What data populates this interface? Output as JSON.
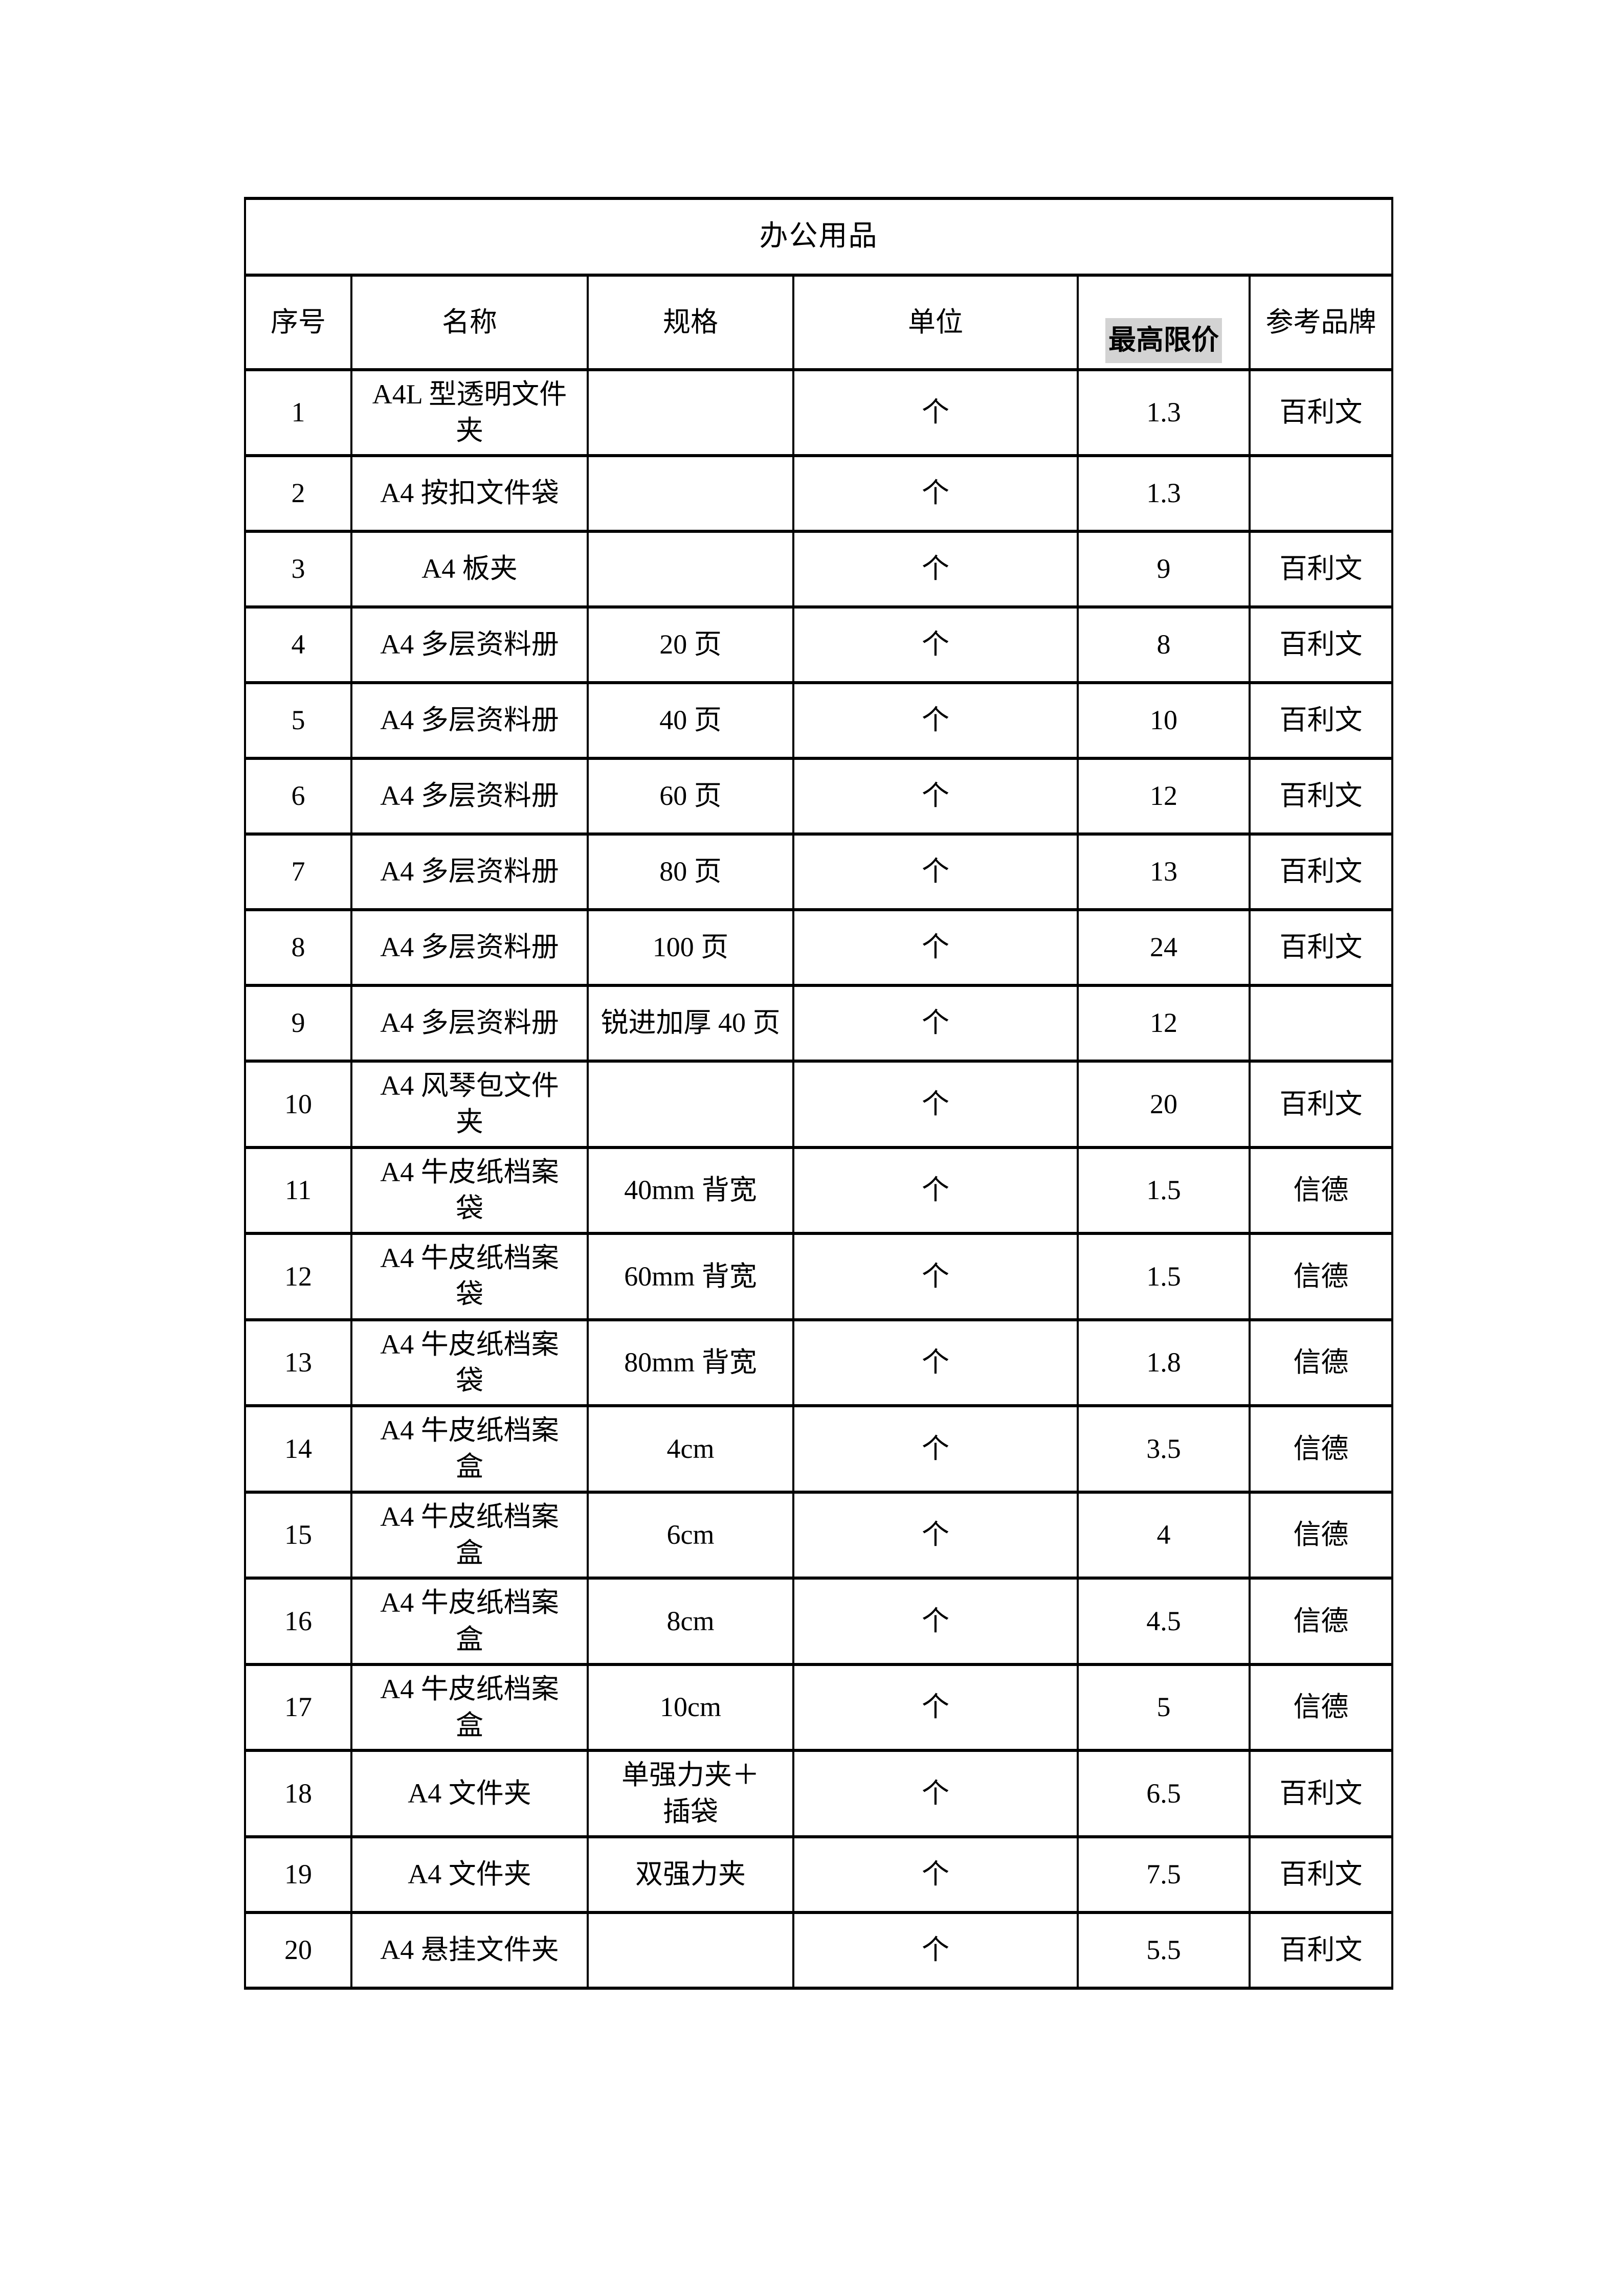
{
  "table": {
    "title": "办公用品",
    "columns": [
      "序号",
      "名称",
      "规格",
      "单位",
      "最高限价",
      "参考品牌"
    ],
    "highlight_color": "#d3d3d3",
    "rows": [
      {
        "no": "1",
        "name": "A4L 型透明文件\n夹",
        "spec": "",
        "unit": "个",
        "price": "1.3",
        "brand": "百利文"
      },
      {
        "no": "2",
        "name": "A4 按扣文件袋",
        "spec": "",
        "unit": "个",
        "price": "1.3",
        "brand": ""
      },
      {
        "no": "3",
        "name": "A4 板夹",
        "spec": "",
        "unit": "个",
        "price": "9",
        "brand": "百利文"
      },
      {
        "no": "4",
        "name": "A4 多层资料册",
        "spec": "20 页",
        "unit": "个",
        "price": "8",
        "brand": "百利文"
      },
      {
        "no": "5",
        "name": "A4 多层资料册",
        "spec": "40 页",
        "unit": "个",
        "price": "10",
        "brand": "百利文"
      },
      {
        "no": "6",
        "name": "A4 多层资料册",
        "spec": "60 页",
        "unit": "个",
        "price": "12",
        "brand": "百利文"
      },
      {
        "no": "7",
        "name": "A4 多层资料册",
        "spec": "80 页",
        "unit": "个",
        "price": "13",
        "brand": "百利文"
      },
      {
        "no": "8",
        "name": "A4 多层资料册",
        "spec": "100 页",
        "unit": "个",
        "price": "24",
        "brand": "百利文"
      },
      {
        "no": "9",
        "name": "A4 多层资料册",
        "spec": "锐进加厚 40 页",
        "unit": "个",
        "price": "12",
        "brand": ""
      },
      {
        "no": "10",
        "name": "A4 风琴包文件\n夹",
        "spec": "",
        "unit": "个",
        "price": "20",
        "brand": "百利文"
      },
      {
        "no": "11",
        "name": "A4 牛皮纸档案\n袋",
        "spec": "40mm 背宽",
        "unit": "个",
        "price": "1.5",
        "brand": "信德"
      },
      {
        "no": "12",
        "name": "A4 牛皮纸档案\n袋",
        "spec": "60mm 背宽",
        "unit": "个",
        "price": "1.5",
        "brand": "信德"
      },
      {
        "no": "13",
        "name": "A4 牛皮纸档案\n袋",
        "spec": "80mm 背宽",
        "unit": "个",
        "price": "1.8",
        "brand": "信德"
      },
      {
        "no": "14",
        "name": "A4 牛皮纸档案\n盒",
        "spec": "4cm",
        "unit": "个",
        "price": "3.5",
        "brand": "信德"
      },
      {
        "no": "15",
        "name": "A4 牛皮纸档案\n盒",
        "spec": "6cm",
        "unit": "个",
        "price": "4",
        "brand": "信德"
      },
      {
        "no": "16",
        "name": "A4 牛皮纸档案\n盒",
        "spec": "8cm",
        "unit": "个",
        "price": "4.5",
        "brand": "信德"
      },
      {
        "no": "17",
        "name": "A4 牛皮纸档案\n盒",
        "spec": "10cm",
        "unit": "个",
        "price": "5",
        "brand": "信德"
      },
      {
        "no": "18",
        "name": "A4 文件夹",
        "spec": "单强力夹＋\n插袋",
        "unit": "个",
        "price": "6.5",
        "brand": "百利文"
      },
      {
        "no": "19",
        "name": "A4 文件夹",
        "spec": "双强力夹",
        "unit": "个",
        "price": "7.5",
        "brand": "百利文"
      },
      {
        "no": "20",
        "name": "A4 悬挂文件夹",
        "spec": "",
        "unit": "个",
        "price": "5.5",
        "brand": "百利文"
      }
    ]
  }
}
